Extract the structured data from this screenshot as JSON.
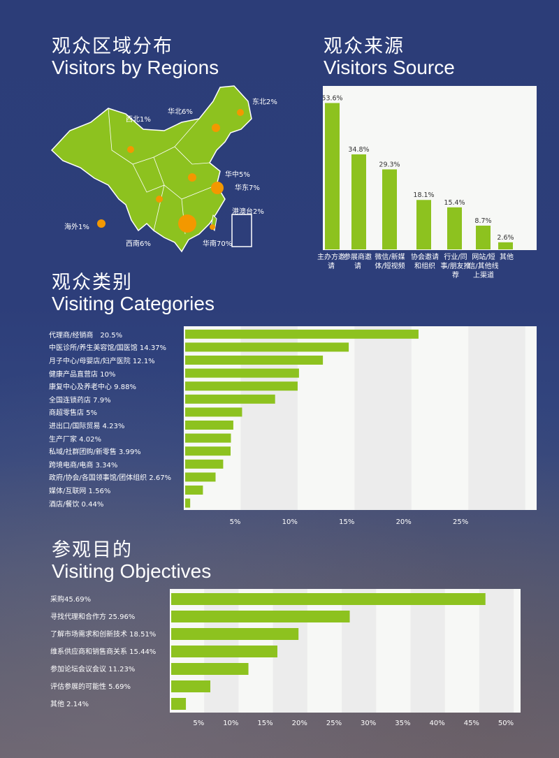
{
  "sections": {
    "regions": {
      "zh": "观众区域分布",
      "en": "Visitors by Regions"
    },
    "source": {
      "zh": "观众来源",
      "en": "Visitors Source"
    },
    "categories": {
      "zh": "观众类别",
      "en": "Visiting Categories"
    },
    "objectives": {
      "zh": "参观目的",
      "en": "Visiting Objectives"
    }
  },
  "colors": {
    "background": "#2d3e7a",
    "bar": "#8dc21f",
    "map": "#8dc21f",
    "dot": "#f39800",
    "panel": "#f7f8f6"
  },
  "map_labels": [
    "东北2%",
    "华北6%",
    "西北1%",
    "华中5%",
    "华东7%",
    "港澳台2%",
    "海外1%",
    "西南6%",
    "华南70%"
  ],
  "chart_data": [
    {
      "type": "bar",
      "orientation": "vertical",
      "categories": [
        "主办方邀请",
        "参展商邀请",
        "微信/新媒体/短视频",
        "协会邀请和组织",
        "行业/同事/朋友推荐",
        "网站/短信/其他线上渠道",
        "其他"
      ],
      "values": [
        53.6,
        34.8,
        29.3,
        18.1,
        15.4,
        8.7,
        2.6
      ],
      "data_labels": [
        "53.6%",
        "34.8%",
        "29.3%",
        "18.1%",
        "15.4%",
        "8.7%",
        "2.6%"
      ],
      "ylim": [
        0,
        55
      ]
    },
    {
      "type": "bar",
      "orientation": "horizontal",
      "labels": [
        "代理商/经销商　20.5%",
        "中医诊所/养生美容馆/国医馆 14.37%",
        "月子中心/母婴店/妇产医院 12.1%",
        "健康产品直营店 10%",
        "康复中心及养老中心 9.88%",
        "全国连锁药店 7.9%",
        "商超零售店 5%",
        "进出口/国际贸易 4.23%",
        "生产厂家 4.02%",
        "私域/社群团购/新零售 3.99%",
        "跨境电商/电商 3.34%",
        "政府/协会/各国领事馆/团体组织 2.67%",
        "媒体/互联网 1.56%",
        "酒店/餐饮 0.44%"
      ],
      "values": [
        20.5,
        14.37,
        12.1,
        10,
        9.88,
        7.9,
        5,
        4.23,
        4.02,
        3.99,
        3.34,
        2.67,
        1.56,
        0.44
      ],
      "xticks": [
        "5%",
        "10%",
        "15%",
        "20%",
        "25%"
      ],
      "xlim": [
        0,
        31
      ],
      "grid": true
    },
    {
      "type": "bar",
      "orientation": "horizontal",
      "labels": [
        "采购45.69%",
        "寻找代理和合作方 25.96%",
        "了解市场需求和创新技术 18.51%",
        "维系供应商和销售商关系 15.44%",
        "参加论坛会议会议 11.23%",
        "评估参展的可能性 5.69%",
        "其他 2.14%"
      ],
      "values": [
        45.69,
        25.96,
        18.51,
        15.44,
        11.23,
        5.69,
        2.14
      ],
      "xticks": [
        "5%",
        "10%",
        "15%",
        "20%",
        "25%",
        "30%",
        "35%",
        "40%",
        "45%",
        "50%"
      ],
      "xlim": [
        0,
        51
      ],
      "grid": true
    }
  ]
}
